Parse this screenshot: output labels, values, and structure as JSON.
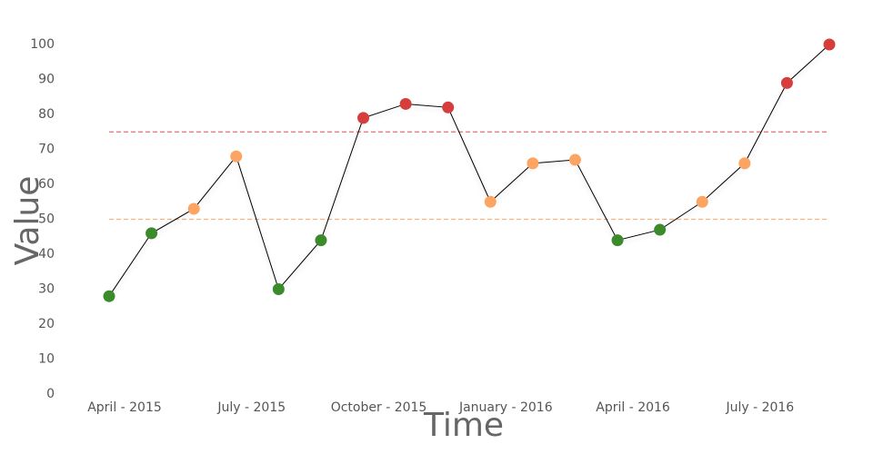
{
  "chart_data": {
    "type": "line",
    "categories": [
      "April - 2015",
      null,
      null,
      "July - 2015",
      null,
      null,
      "October - 2015",
      null,
      null,
      "January - 2016",
      null,
      null,
      "April - 2016",
      null,
      null,
      "July - 2016",
      null,
      null
    ],
    "values": [
      28,
      46,
      53,
      68,
      30,
      44,
      79,
      83,
      82,
      55,
      66,
      67,
      44,
      47,
      55,
      66,
      89,
      100
    ],
    "point_colors": [
      "#3b8a2c",
      "#3b8a2c",
      "#fca461",
      "#fca461",
      "#3b8a2c",
      "#3b8a2c",
      "#d63d3d",
      "#d63d3d",
      "#d63d3d",
      "#fca461",
      "#fca461",
      "#fca461",
      "#3b8a2c",
      "#3b8a2c",
      "#fca461",
      "#fca461",
      "#d63d3d",
      "#d63d3d"
    ],
    "line_color": "#000000",
    "thresholds": [
      {
        "value": 50,
        "color": "#f2b283"
      },
      {
        "value": 75,
        "color": "#e07070"
      }
    ],
    "x_label": "Time",
    "y_label": "Value",
    "ylim": [
      0,
      100
    ],
    "yticks": [
      0,
      10,
      20,
      30,
      40,
      50,
      60,
      70,
      80,
      90,
      100
    ],
    "grid": false
  }
}
